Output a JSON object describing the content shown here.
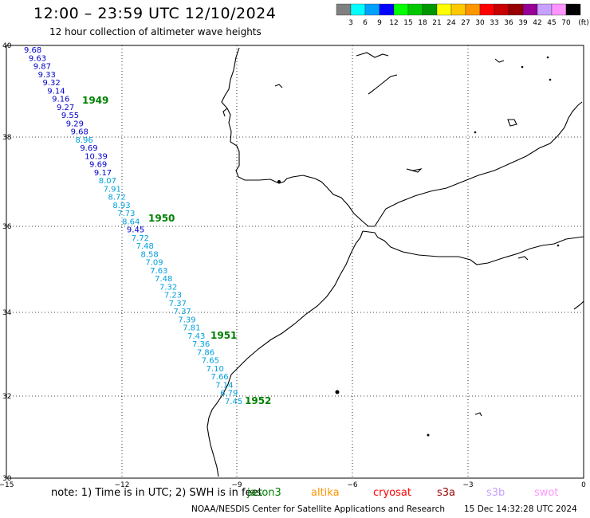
{
  "title": "12:00 – 23:59 UTC 12/10/2024",
  "subtitle": "12 hour collection of altimeter wave heights",
  "legend": {
    "labels": [
      "3",
      "6",
      "9",
      "12",
      "15",
      "18",
      "21",
      "24",
      "27",
      "30",
      "33",
      "36",
      "39",
      "42",
      "45",
      "70",
      "(ft)"
    ],
    "colors": [
      "#808080",
      "#00ffff",
      "#00a0ff",
      "#0000ff",
      "#00ff00",
      "#00c800",
      "#009600",
      "#ffff00",
      "#ffc800",
      "#ff9600",
      "#ff0000",
      "#c80000",
      "#960000",
      "#960096",
      "#c8a0ff",
      "#ff96ff",
      "#000000"
    ]
  },
  "axes": {
    "x_labels": [
      "−15",
      "−12",
      "−9",
      "−6",
      "−3",
      "0"
    ],
    "y_labels": [
      "40",
      "38",
      "36",
      "34",
      "32",
      "30"
    ]
  },
  "track_labels": [
    {
      "text": "1949",
      "color": "#008000"
    },
    {
      "text": "1950",
      "color": "#008000"
    },
    {
      "text": "1951",
      "color": "#008000"
    },
    {
      "text": "1952",
      "color": "#008000"
    }
  ],
  "wave_heights": [
    {
      "v": "9.68",
      "c": "#0000cc"
    },
    {
      "v": "9.63",
      "c": "#0000cc"
    },
    {
      "v": "9.87",
      "c": "#0000cc"
    },
    {
      "v": "9.33",
      "c": "#0000cc"
    },
    {
      "v": "9.32",
      "c": "#0000cc"
    },
    {
      "v": "9.14",
      "c": "#0000cc"
    },
    {
      "v": "9.16",
      "c": "#0000cc"
    },
    {
      "v": "9.27",
      "c": "#0000cc"
    },
    {
      "v": "9.55",
      "c": "#0000cc"
    },
    {
      "v": "9.29",
      "c": "#0000cc"
    },
    {
      "v": "9.68",
      "c": "#0000cc"
    },
    {
      "v": "8.96",
      "c": "#00a0dc"
    },
    {
      "v": "9.69",
      "c": "#0000cc"
    },
    {
      "v": "10.39",
      "c": "#0000cc"
    },
    {
      "v": "9.69",
      "c": "#0000cc"
    },
    {
      "v": "9.17",
      "c": "#0000cc"
    },
    {
      "v": "8.07",
      "c": "#00a0dc"
    },
    {
      "v": "7.91",
      "c": "#00a0dc"
    },
    {
      "v": "8.72",
      "c": "#00a0dc"
    },
    {
      "v": "8.93",
      "c": "#00a0dc"
    },
    {
      "v": "7.73",
      "c": "#00a0dc"
    },
    {
      "v": "8.64",
      "c": "#00a0dc"
    },
    {
      "v": "9.45",
      "c": "#0000cc"
    },
    {
      "v": "7.72",
      "c": "#00a0dc"
    },
    {
      "v": "7.48",
      "c": "#00a0dc"
    },
    {
      "v": "8.58",
      "c": "#00a0dc"
    },
    {
      "v": "7.09",
      "c": "#00a0dc"
    },
    {
      "v": "7.63",
      "c": "#00a0dc"
    },
    {
      "v": "7.48",
      "c": "#00a0dc"
    },
    {
      "v": "7.32",
      "c": "#00a0dc"
    },
    {
      "v": "7.23",
      "c": "#00a0dc"
    },
    {
      "v": "7.37",
      "c": "#00a0dc"
    },
    {
      "v": "7.37",
      "c": "#00a0dc"
    },
    {
      "v": "7.39",
      "c": "#00a0dc"
    },
    {
      "v": "7.81",
      "c": "#00a0dc"
    },
    {
      "v": "7.43",
      "c": "#00a0dc"
    },
    {
      "v": "7.36",
      "c": "#00a0dc"
    },
    {
      "v": "7.86",
      "c": "#00a0dc"
    },
    {
      "v": "7.65",
      "c": "#00a0dc"
    },
    {
      "v": "7.10",
      "c": "#00a0dc"
    },
    {
      "v": "7.66",
      "c": "#00a0dc"
    },
    {
      "v": "7.14",
      "c": "#00a0dc"
    },
    {
      "v": "6.79",
      "c": "#00a0dc"
    },
    {
      "v": "7.45",
      "c": "#00a0dc"
    }
  ],
  "note": {
    "text": "note:  1) Time is in UTC; 2) SWH is in feet",
    "satellites": [
      {
        "name": "jason3",
        "color": "#008000"
      },
      {
        "name": "altika",
        "color": "#ff9600"
      },
      {
        "name": "cryosat",
        "color": "#ff0000"
      },
      {
        "name": "s3a",
        "color": "#960000"
      },
      {
        "name": "s3b",
        "color": "#c8a0ff"
      },
      {
        "name": "swot",
        "color": "#ff96ff"
      }
    ]
  },
  "footer": {
    "source": "NOAA/NESDIS Center for Satellite Applications and Research",
    "timestamp": "15 Dec 14:32:28 UTC 2024"
  }
}
